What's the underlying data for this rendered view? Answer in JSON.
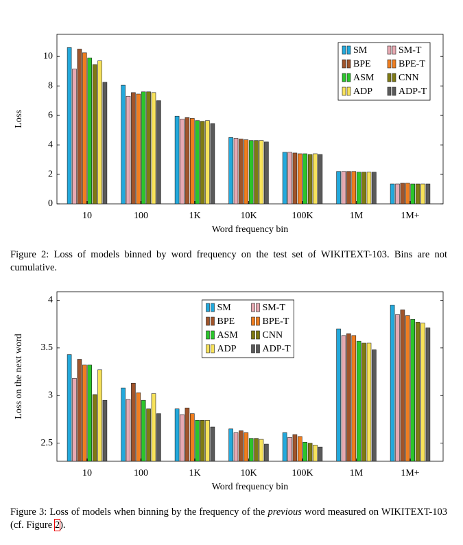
{
  "chart_data": [
    {
      "type": "bar",
      "xlabel": "Word frequency bin",
      "ylabel": "Loss",
      "caption": "Figure 2: Loss of models binned by word frequency on the test set of WIKITEXT-103. Bins are not cumulative.",
      "categories": [
        "10",
        "100",
        "1K",
        "10K",
        "100K",
        "1M",
        "1M+"
      ],
      "ylim": [
        0,
        11.5
      ],
      "yticks": [
        0,
        2,
        4,
        6,
        8,
        10
      ],
      "legend": "upper right",
      "series": [
        {
          "name": "SM",
          "color": "#23a9dc",
          "values": [
            10.6,
            8.05,
            5.95,
            4.5,
            3.5,
            2.2,
            1.35
          ]
        },
        {
          "name": "SM-T",
          "color": "#e7a9b2",
          "values": [
            9.15,
            7.3,
            5.75,
            4.45,
            3.5,
            2.2,
            1.35
          ]
        },
        {
          "name": "BPE",
          "color": "#a0542a",
          "values": [
            10.5,
            7.55,
            5.85,
            4.4,
            3.45,
            2.2,
            1.4
          ]
        },
        {
          "name": "BPE-T",
          "color": "#ef7d1f",
          "values": [
            10.25,
            7.45,
            5.8,
            4.35,
            3.4,
            2.2,
            1.4
          ]
        },
        {
          "name": "ASM",
          "color": "#2bc52b",
          "values": [
            9.9,
            7.6,
            5.65,
            4.3,
            3.4,
            2.15,
            1.35
          ]
        },
        {
          "name": "CNN",
          "color": "#7f7a12",
          "values": [
            9.45,
            7.6,
            5.6,
            4.3,
            3.35,
            2.15,
            1.35
          ]
        },
        {
          "name": "ADP",
          "color": "#f7e25a",
          "values": [
            9.7,
            7.55,
            5.65,
            4.3,
            3.4,
            2.15,
            1.35
          ]
        },
        {
          "name": "ADP-T",
          "color": "#5a5a5a",
          "values": [
            8.25,
            7.0,
            5.45,
            4.2,
            3.35,
            2.15,
            1.35
          ]
        }
      ]
    },
    {
      "type": "bar",
      "xlabel": "Word frequency bin",
      "ylabel": "Loss on the next word",
      "caption_parts": [
        "Figure 3: Loss of models when binning by the frequency of the ",
        "previous",
        " word measured on WIKITEXT-103 (cf. Figure ",
        "2",
        ")."
      ],
      "categories": [
        "10",
        "100",
        "1K",
        "10K",
        "100K",
        "1M",
        "1M+"
      ],
      "ylim": [
        2.31,
        4.09
      ],
      "yticks": [
        2.5,
        3,
        3.5,
        4
      ],
      "legend": "upper center",
      "series": [
        {
          "name": "SM",
          "color": "#23a9dc",
          "values": [
            3.43,
            3.08,
            2.86,
            2.65,
            2.61,
            3.7,
            3.95
          ]
        },
        {
          "name": "SM-T",
          "color": "#e7a9b2",
          "values": [
            3.18,
            2.96,
            2.8,
            2.61,
            2.56,
            3.63,
            3.85
          ]
        },
        {
          "name": "BPE",
          "color": "#a0542a",
          "values": [
            3.38,
            3.13,
            2.87,
            2.63,
            2.59,
            3.65,
            3.9
          ]
        },
        {
          "name": "BPE-T",
          "color": "#ef7d1f",
          "values": [
            3.32,
            3.03,
            2.81,
            2.61,
            2.57,
            3.63,
            3.84
          ]
        },
        {
          "name": "ASM",
          "color": "#2bc52b",
          "values": [
            3.32,
            2.95,
            2.74,
            2.55,
            2.51,
            3.57,
            3.8
          ]
        },
        {
          "name": "CNN",
          "color": "#7f7a12",
          "values": [
            3.01,
            2.86,
            2.74,
            2.55,
            2.5,
            3.55,
            3.77
          ]
        },
        {
          "name": "ADP",
          "color": "#f7e25a",
          "values": [
            3.27,
            3.02,
            2.74,
            2.54,
            2.48,
            3.55,
            3.76
          ]
        },
        {
          "name": "ADP-T",
          "color": "#5a5a5a",
          "values": [
            2.95,
            2.81,
            2.67,
            2.49,
            2.46,
            3.48,
            3.71
          ]
        }
      ]
    }
  ]
}
